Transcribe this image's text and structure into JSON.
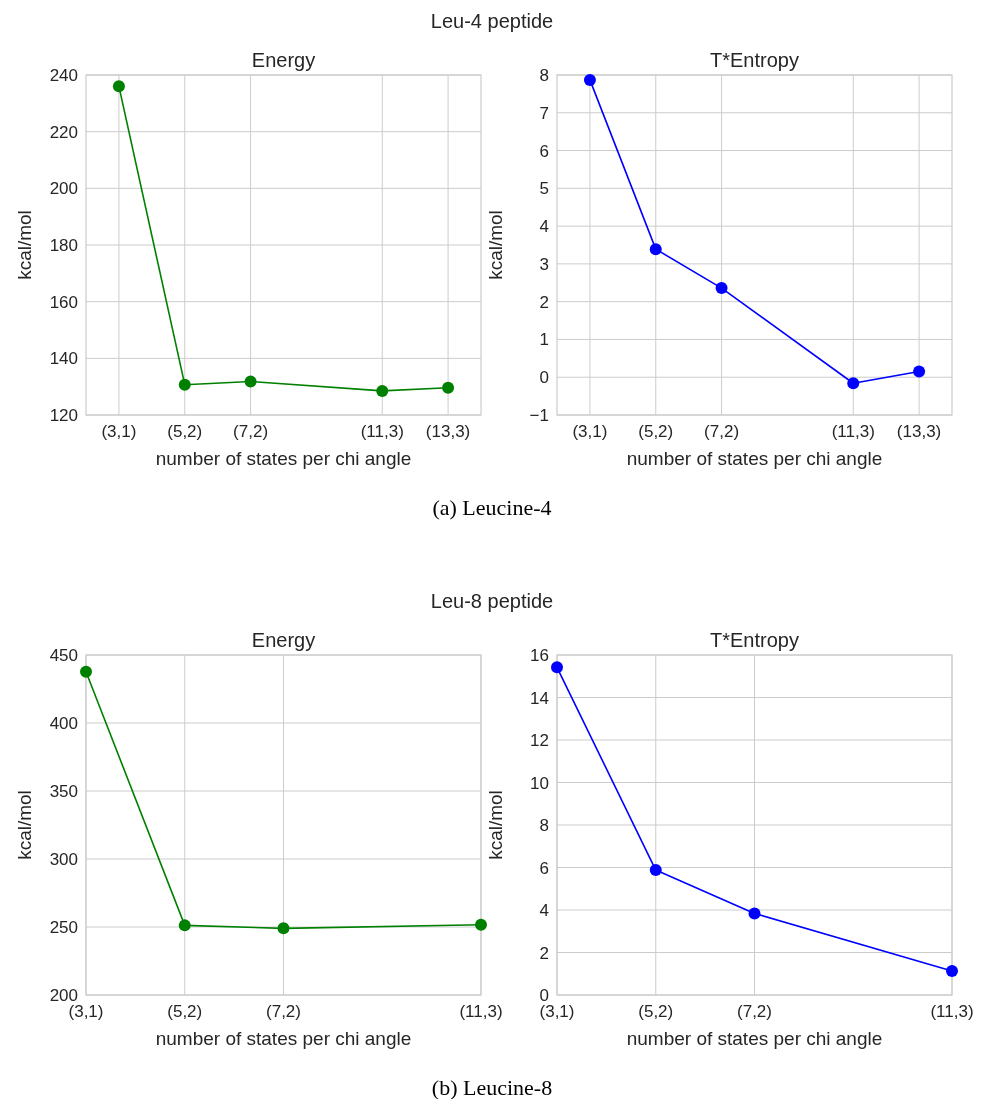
{
  "chart_data": [
    {
      "type": "line",
      "title": "Energy",
      "xlabel": "number of states per chi angle",
      "ylabel": "kcal/mol",
      "annotations": [
        "Leu-4 peptide",
        "(a) Leucine-4"
      ],
      "categories": [
        "(3,1)",
        null,
        "(5,2)",
        null,
        "(7,2)",
        null,
        null,
        null,
        "(11,3)",
        null,
        "(13,3)"
      ],
      "ylim": [
        120,
        240
      ],
      "yticks": [
        120,
        140,
        160,
        180,
        200,
        220,
        240
      ],
      "grid": true,
      "marker": "circle",
      "series": [
        {
          "color": "#008000",
          "values": [
            236,
            null,
            130.7,
            null,
            131.8,
            null,
            null,
            null,
            128.5,
            null,
            129.6
          ]
        }
      ]
    },
    {
      "type": "line",
      "title": "T*Entropy",
      "xlabel": "number of states per chi angle",
      "ylabel": "kcal/mol",
      "categories": [
        "(3,1)",
        null,
        "(5,2)",
        null,
        "(7,2)",
        null,
        null,
        null,
        "(11,3)",
        null,
        "(13,3)"
      ],
      "ylim": [
        -1,
        8
      ],
      "yticks": [
        {
          "value": -1,
          "label": "−1"
        },
        0,
        1,
        2,
        3,
        4,
        5,
        6,
        7,
        8
      ],
      "grid": true,
      "marker": "circle",
      "series": [
        {
          "color": "#0000ff",
          "values": [
            7.87,
            null,
            3.39,
            null,
            2.36,
            null,
            null,
            null,
            -0.16,
            null,
            0.15
          ]
        }
      ]
    },
    {
      "type": "line",
      "title": "Energy",
      "xlabel": "number of states per chi angle",
      "ylabel": "kcal/mol",
      "annotations": [
        "Leu-8 peptide",
        "(b) Leucine-8"
      ],
      "categories": [
        "(3,1)",
        null,
        "(5,2)",
        null,
        "(7,2)",
        null,
        null,
        null,
        "(11,3)"
      ],
      "ylim": [
        200,
        450
      ],
      "yticks": [
        200,
        250,
        300,
        350,
        400,
        450
      ],
      "grid": true,
      "marker": "circle",
      "series": [
        {
          "color": "#008000",
          "values": [
            437.7,
            null,
            251.2,
            null,
            249,
            null,
            null,
            null,
            251.7
          ]
        }
      ]
    },
    {
      "type": "line",
      "title": "T*Entropy",
      "xlabel": "number of states per chi angle",
      "ylabel": "kcal/mol",
      "categories": [
        "(3,1)",
        null,
        "(5,2)",
        null,
        "(7,2)",
        null,
        null,
        null,
        "(11,3)"
      ],
      "ylim": [
        0,
        16
      ],
      "yticks": [
        0,
        2,
        4,
        6,
        8,
        10,
        12,
        14,
        16
      ],
      "grid": true,
      "marker": "circle",
      "series": [
        {
          "color": "#0000ff",
          "values": [
            15.42,
            null,
            5.88,
            null,
            3.84,
            null,
            null,
            null,
            1.13
          ]
        }
      ]
    }
  ]
}
